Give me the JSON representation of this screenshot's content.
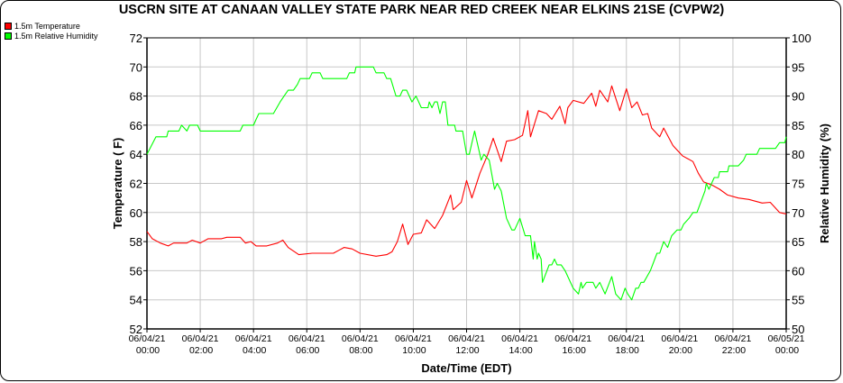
{
  "chart_data": {
    "type": "line",
    "title": "USCRN SITE AT CANAAN VALLEY STATE PARK NEAR RED CREEK NEAR ELKINS 21SE (CVPW2)",
    "xlabel": "Date/Time (EDT)",
    "ylabel": "Temperature ( F)",
    "y2label": "Relative Humidity (%)",
    "xlim": [
      "06/04/21 00:00",
      "06/05/21 00:00"
    ],
    "ylim": [
      52,
      72
    ],
    "y2lim": [
      50,
      100
    ],
    "grid": true,
    "legend_position": "top-left",
    "x_ticks": [
      {
        "date": "06/04/21",
        "time": "00:00"
      },
      {
        "date": "06/04/21",
        "time": "02:00"
      },
      {
        "date": "06/04/21",
        "time": "04:00"
      },
      {
        "date": "06/04/21",
        "time": "06:00"
      },
      {
        "date": "06/04/21",
        "time": "08:00"
      },
      {
        "date": "06/04/21",
        "time": "10:00"
      },
      {
        "date": "06/04/21",
        "time": "12:00"
      },
      {
        "date": "06/04/21",
        "time": "14:00"
      },
      {
        "date": "06/04/21",
        "time": "16:00"
      },
      {
        "date": "06/04/21",
        "time": "18:00"
      },
      {
        "date": "06/04/21",
        "time": "20:00"
      },
      {
        "date": "06/04/21",
        "time": "22:00"
      },
      {
        "date": "06/05/21",
        "time": "00:00"
      }
    ],
    "y_ticks": [
      52,
      54,
      56,
      58,
      60,
      62,
      64,
      66,
      68,
      70,
      72
    ],
    "y2_ticks": [
      50,
      55,
      60,
      65,
      70,
      75,
      80,
      85,
      90,
      95,
      100
    ],
    "series": [
      {
        "name": "1.5m Temperature",
        "axis": "left",
        "color": "#ff0000",
        "points": [
          [
            0,
            58.7
          ],
          [
            0.2,
            58.2
          ],
          [
            0.5,
            57.9
          ],
          [
            0.8,
            57.7
          ],
          [
            1,
            57.9
          ],
          [
            1.5,
            57.9
          ],
          [
            1.7,
            58.1
          ],
          [
            2,
            57.9
          ],
          [
            2.3,
            58.2
          ],
          [
            2.8,
            58.2
          ],
          [
            3,
            58.3
          ],
          [
            3.5,
            58.3
          ],
          [
            3.7,
            57.9
          ],
          [
            3.9,
            58.0
          ],
          [
            4.1,
            57.7
          ],
          [
            4.5,
            57.7
          ],
          [
            4.9,
            57.9
          ],
          [
            5.1,
            58.1
          ],
          [
            5.3,
            57.6
          ],
          [
            5.7,
            57.1
          ],
          [
            6.2,
            57.2
          ],
          [
            7,
            57.2
          ],
          [
            7.2,
            57.4
          ],
          [
            7.4,
            57.6
          ],
          [
            7.7,
            57.5
          ],
          [
            8,
            57.2
          ],
          [
            8.6,
            57.0
          ],
          [
            9,
            57.1
          ],
          [
            9.2,
            57.3
          ],
          [
            9.4,
            58.0
          ],
          [
            9.6,
            59.2
          ],
          [
            9.8,
            57.8
          ],
          [
            10,
            58.5
          ],
          [
            10.3,
            58.6
          ],
          [
            10.5,
            59.5
          ],
          [
            10.8,
            58.9
          ],
          [
            11.1,
            59.8
          ],
          [
            11.4,
            61.2
          ],
          [
            11.5,
            60.2
          ],
          [
            11.8,
            60.7
          ],
          [
            12.0,
            62.2
          ],
          [
            12.2,
            61.0
          ],
          [
            12.5,
            62.7
          ],
          [
            12.8,
            64.0
          ],
          [
            13.0,
            65.1
          ],
          [
            13.3,
            63.5
          ],
          [
            13.5,
            64.9
          ],
          [
            13.8,
            65.0
          ],
          [
            14.1,
            65.3
          ],
          [
            14.3,
            67.0
          ],
          [
            14.4,
            65.2
          ],
          [
            14.7,
            67.0
          ],
          [
            15.0,
            66.8
          ],
          [
            15.2,
            66.4
          ],
          [
            15.5,
            67.3
          ],
          [
            15.7,
            66.1
          ],
          [
            15.8,
            67.2
          ],
          [
            16.0,
            67.7
          ],
          [
            16.4,
            67.5
          ],
          [
            16.7,
            68.2
          ],
          [
            16.85,
            67.3
          ],
          [
            17.0,
            68.4
          ],
          [
            17.3,
            67.6
          ],
          [
            17.45,
            68.7
          ],
          [
            17.75,
            67.0
          ],
          [
            18.0,
            68.5
          ],
          [
            18.2,
            67.2
          ],
          [
            18.4,
            67.6
          ],
          [
            18.6,
            66.7
          ],
          [
            18.8,
            66.8
          ],
          [
            18.95,
            65.8
          ],
          [
            19.25,
            65.2
          ],
          [
            19.4,
            65.8
          ],
          [
            19.75,
            64.6
          ],
          [
            20.1,
            63.9
          ],
          [
            20.5,
            63.5
          ],
          [
            20.7,
            62.7
          ],
          [
            20.9,
            62.1
          ],
          [
            21.2,
            61.9
          ],
          [
            21.5,
            61.6
          ],
          [
            21.8,
            61.2
          ],
          [
            22.2,
            61.0
          ],
          [
            22.6,
            60.9
          ],
          [
            23.1,
            60.65
          ],
          [
            23.4,
            60.7
          ],
          [
            23.75,
            60.0
          ],
          [
            24,
            59.9
          ]
        ]
      },
      {
        "name": "1.5m Relative Humidity",
        "axis": "right",
        "color": "#00ff00",
        "points": [
          [
            0,
            80
          ],
          [
            0.34,
            83
          ],
          [
            0.74,
            83
          ],
          [
            0.8,
            84
          ],
          [
            1.2,
            84
          ],
          [
            1.3,
            85
          ],
          [
            1.5,
            84
          ],
          [
            1.6,
            85
          ],
          [
            1.9,
            85
          ],
          [
            2.0,
            84
          ],
          [
            3.5,
            84
          ],
          [
            3.6,
            85
          ],
          [
            4.0,
            85
          ],
          [
            4.1,
            86
          ],
          [
            4.2,
            87
          ],
          [
            4.75,
            87
          ],
          [
            5.0,
            89
          ],
          [
            5.15,
            90
          ],
          [
            5.3,
            91
          ],
          [
            5.5,
            91
          ],
          [
            5.65,
            92
          ],
          [
            5.75,
            93
          ],
          [
            6.1,
            93
          ],
          [
            6.2,
            94
          ],
          [
            6.5,
            94
          ],
          [
            6.6,
            93
          ],
          [
            7.5,
            93
          ],
          [
            7.6,
            94
          ],
          [
            7.8,
            94
          ],
          [
            7.85,
            95
          ],
          [
            8.5,
            95
          ],
          [
            8.6,
            94
          ],
          [
            8.9,
            94
          ],
          [
            9.0,
            93
          ],
          [
            9.15,
            93
          ],
          [
            9.35,
            90
          ],
          [
            9.5,
            90
          ],
          [
            9.6,
            91
          ],
          [
            9.75,
            91
          ],
          [
            9.95,
            89
          ],
          [
            10.1,
            90
          ],
          [
            10.3,
            88
          ],
          [
            10.55,
            88
          ],
          [
            10.6,
            89
          ],
          [
            10.7,
            88
          ],
          [
            10.8,
            89
          ],
          [
            10.9,
            89
          ],
          [
            11.0,
            87
          ],
          [
            11.1,
            89
          ],
          [
            11.2,
            89
          ],
          [
            11.3,
            85
          ],
          [
            11.55,
            85
          ],
          [
            11.6,
            84
          ],
          [
            11.85,
            84
          ],
          [
            12.0,
            80
          ],
          [
            12.1,
            80
          ],
          [
            12.3,
            84
          ],
          [
            12.4,
            82
          ],
          [
            12.55,
            79
          ],
          [
            12.65,
            80
          ],
          [
            12.85,
            79
          ],
          [
            13.05,
            74
          ],
          [
            13.15,
            75
          ],
          [
            13.3,
            73.7
          ],
          [
            13.5,
            69
          ],
          [
            13.7,
            67
          ],
          [
            13.8,
            67
          ],
          [
            14.0,
            69
          ],
          [
            14.2,
            66
          ],
          [
            14.4,
            66
          ],
          [
            14.5,
            62
          ],
          [
            14.55,
            65
          ],
          [
            14.65,
            62
          ],
          [
            14.7,
            63
          ],
          [
            14.8,
            62
          ],
          [
            14.85,
            58
          ],
          [
            15.1,
            61
          ],
          [
            15.2,
            61
          ],
          [
            15.3,
            62
          ],
          [
            15.4,
            61
          ],
          [
            15.55,
            61
          ],
          [
            15.7,
            60
          ],
          [
            16.0,
            57
          ],
          [
            16.2,
            56
          ],
          [
            16.3,
            58
          ],
          [
            16.35,
            57
          ],
          [
            16.5,
            58
          ],
          [
            16.75,
            58
          ],
          [
            16.85,
            57
          ],
          [
            17.0,
            58
          ],
          [
            17.2,
            56
          ],
          [
            17.45,
            59
          ],
          [
            17.6,
            56
          ],
          [
            17.8,
            55
          ],
          [
            17.95,
            57
          ],
          [
            18.05,
            56
          ],
          [
            18.2,
            55
          ],
          [
            18.35,
            57
          ],
          [
            18.45,
            57
          ],
          [
            18.55,
            58
          ],
          [
            18.65,
            58
          ],
          [
            18.9,
            60
          ],
          [
            19.15,
            63
          ],
          [
            19.25,
            63
          ],
          [
            19.4,
            65
          ],
          [
            19.55,
            64
          ],
          [
            19.7,
            66
          ],
          [
            19.9,
            67
          ],
          [
            20.05,
            67
          ],
          [
            20.15,
            68
          ],
          [
            20.35,
            69
          ],
          [
            20.5,
            70
          ],
          [
            20.65,
            70
          ],
          [
            20.95,
            73.7
          ],
          [
            21.0,
            75
          ],
          [
            21.1,
            74
          ],
          [
            21.3,
            76
          ],
          [
            21.45,
            76
          ],
          [
            21.5,
            77
          ],
          [
            21.8,
            77
          ],
          [
            21.85,
            78
          ],
          [
            22.2,
            78
          ],
          [
            22.4,
            79
          ],
          [
            22.5,
            80
          ],
          [
            22.9,
            80
          ],
          [
            23.0,
            81
          ],
          [
            23.6,
            81
          ],
          [
            23.75,
            82
          ],
          [
            23.95,
            82
          ],
          [
            24,
            83
          ]
        ]
      }
    ]
  }
}
